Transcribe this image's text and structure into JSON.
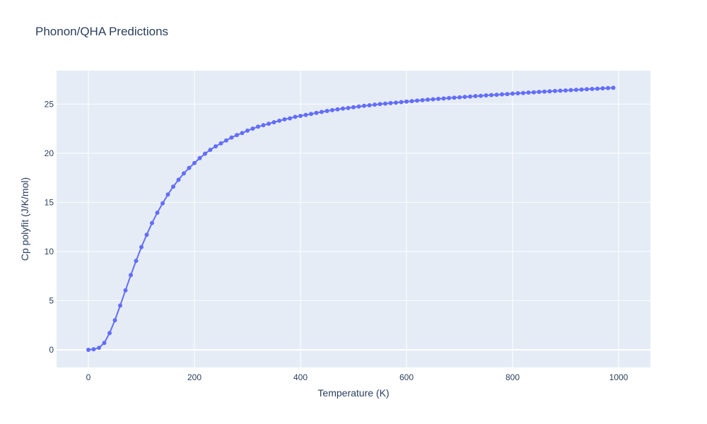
{
  "chart_data": {
    "type": "line",
    "title": "Phonon/QHA Predictions",
    "xlabel": "Temperature (K)",
    "ylabel": "Cp polyfit (J/K/mol)",
    "xlim": [
      -60,
      1060
    ],
    "ylim": [
      -1.8,
      28.4
    ],
    "xticks": [
      0,
      200,
      400,
      600,
      800,
      1000
    ],
    "yticks": [
      0,
      5,
      10,
      15,
      20,
      25
    ],
    "grid": true,
    "legend": "none",
    "colors": {
      "plot_bg": "#e5ecf6",
      "series": "#636efa",
      "text": "#2a3f5f"
    },
    "series": [
      {
        "mode": "lines+markers",
        "x": [
          0,
          10,
          20,
          30,
          40,
          50,
          60,
          70,
          80,
          90,
          100,
          110,
          120,
          130,
          140,
          150,
          160,
          170,
          180,
          190,
          200,
          210,
          220,
          230,
          240,
          250,
          260,
          270,
          280,
          290,
          300,
          310,
          320,
          330,
          340,
          350,
          360,
          370,
          380,
          390,
          400,
          410,
          420,
          430,
          440,
          450,
          460,
          470,
          480,
          490,
          500,
          510,
          520,
          530,
          540,
          550,
          560,
          570,
          580,
          590,
          600,
          610,
          620,
          630,
          640,
          650,
          660,
          670,
          680,
          690,
          700,
          710,
          720,
          730,
          740,
          750,
          760,
          770,
          780,
          790,
          800,
          810,
          820,
          830,
          840,
          850,
          860,
          870,
          880,
          890,
          900,
          910,
          920,
          930,
          940,
          950,
          960,
          970,
          980,
          990
        ],
        "y": [
          0,
          0.05,
          0.2,
          0.7,
          1.7,
          3.0,
          4.5,
          6.05,
          7.6,
          9.05,
          10.45,
          11.7,
          12.9,
          13.95,
          14.9,
          15.8,
          16.6,
          17.3,
          17.95,
          18.5,
          19.0,
          19.5,
          19.95,
          20.35,
          20.7,
          21.0,
          21.3,
          21.6,
          21.85,
          22.05,
          22.3,
          22.5,
          22.7,
          22.85,
          23.0,
          23.15,
          23.3,
          23.45,
          23.55,
          23.7,
          23.8,
          23.9,
          24.0,
          24.1,
          24.2,
          24.3,
          24.38,
          24.46,
          24.54,
          24.6,
          24.68,
          24.75,
          24.82,
          24.88,
          24.94,
          25.0,
          25.05,
          25.1,
          25.15,
          25.2,
          25.25,
          25.3,
          25.35,
          25.4,
          25.45,
          25.49,
          25.53,
          25.57,
          25.61,
          25.65,
          25.69,
          25.73,
          25.77,
          25.81,
          25.84,
          25.88,
          25.92,
          25.95,
          25.99,
          26.02,
          26.06,
          26.1,
          26.13,
          26.17,
          26.2,
          26.24,
          26.27,
          26.3,
          26.33,
          26.36,
          26.39,
          26.42,
          26.45,
          26.48,
          26.51,
          26.54,
          26.57,
          26.6,
          26.63,
          26.66
        ]
      }
    ]
  }
}
